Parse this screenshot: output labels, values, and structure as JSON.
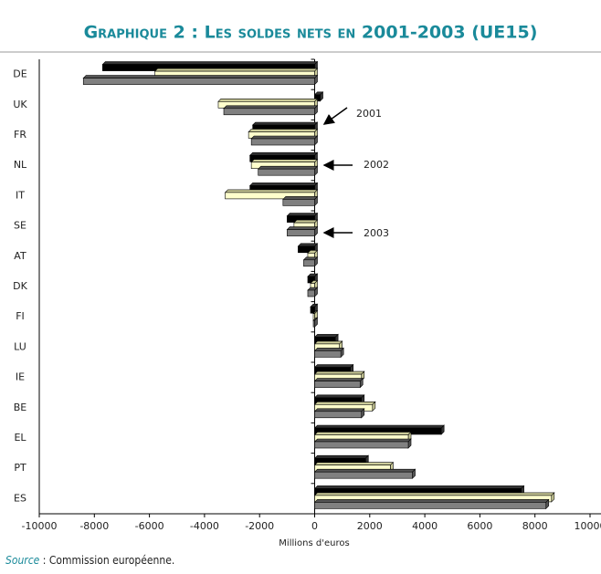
{
  "chart_data": {
    "type": "bar",
    "orientation": "horizontal",
    "title": "Graphique 2 : Les soldes nets en 2001-2003 (UE15)",
    "xlabel": "Millions d'euros",
    "source_label": "Source",
    "source_text": " : Commission européenne.",
    "categories": [
      "DE",
      "UK",
      "FR",
      "NL",
      "IT",
      "SE",
      "AT",
      "DK",
      "FI",
      "LU",
      "IE",
      "BE",
      "EL",
      "PT",
      "ES"
    ],
    "series": [
      {
        "name": "2001",
        "color": "#000000",
        "values": [
          -7700,
          200,
          -2250,
          -2350,
          -2350,
          -1000,
          -600,
          -250,
          -150,
          750,
          1300,
          1700,
          4600,
          1850,
          7500
        ]
      },
      {
        "name": "2002",
        "color": "#ffffcc",
        "values": [
          -5800,
          -3500,
          -2400,
          -2300,
          -3250,
          -750,
          -250,
          -150,
          -50,
          900,
          1700,
          2100,
          3400,
          2750,
          8600
        ]
      },
      {
        "name": "2003",
        "color": "#808080",
        "values": [
          -8400,
          -3300,
          -2300,
          -2050,
          -1150,
          -1000,
          -400,
          -250,
          -50,
          950,
          1650,
          1700,
          3400,
          3550,
          8400
        ]
      }
    ],
    "xlim": [
      -10000,
      10000
    ],
    "xticks": [
      -10000,
      -8000,
      -6000,
      -4000,
      -2000,
      0,
      2000,
      4000,
      6000,
      8000,
      10000
    ]
  }
}
